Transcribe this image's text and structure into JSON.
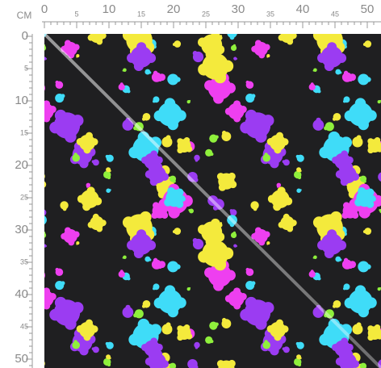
{
  "ruler": {
    "unit": "CM",
    "top_labels": [
      "0",
      "5",
      "10",
      "15",
      "20",
      "25",
      "30",
      "35",
      "40",
      "45",
      "50"
    ],
    "left_labels": [
      "0",
      "5",
      "10",
      "15",
      "20",
      "25",
      "30",
      "35",
      "40",
      "45",
      "50"
    ]
  }
}
